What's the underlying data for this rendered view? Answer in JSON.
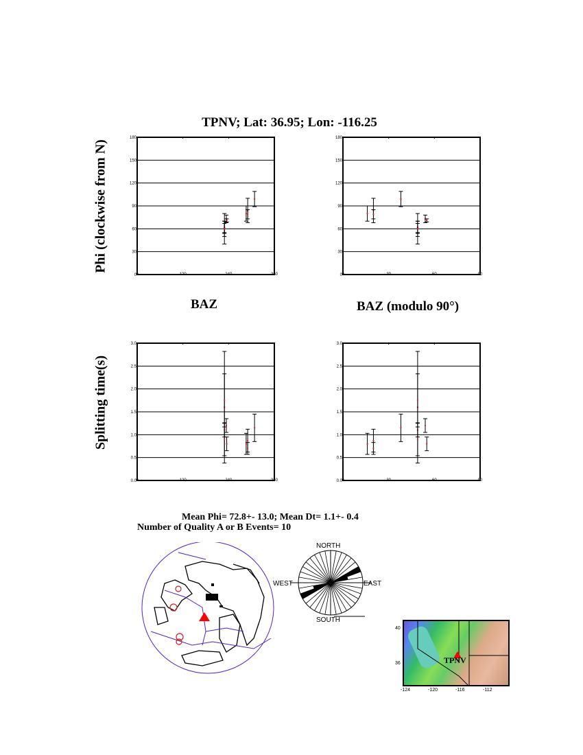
{
  "title": "TPNV; Lat:  36.95;  Lon: -116.25",
  "labels": {
    "phi_axis": "Phi (clockwise from N)",
    "dt_axis": "Splitting time(s)",
    "baz": "BAZ",
    "baz_mod": "BAZ (modulo 90°)"
  },
  "stats": {
    "line1": "Mean Phi= 72.8+- 13.0; Mean Dt=  1.1+-  0.4",
    "line2": "Number of Quality A  or B Events= 10"
  },
  "colors": {
    "marker": "#cc2222",
    "errorbar": "#000000",
    "globe_outline": "#5522cc",
    "station": "#ff0000"
  },
  "chart_data": [
    {
      "type": "scatter",
      "id": "phi_vs_baz",
      "xlim": [
        0,
        360
      ],
      "ylim": [
        0,
        180
      ],
      "xticks": [
        "0",
        "120",
        "240",
        "360"
      ],
      "yticks": [
        "0",
        "30",
        "60",
        "90",
        "120",
        "150",
        "180"
      ],
      "grid": "horizontal",
      "x_field": "baz",
      "y_field": "phi"
    },
    {
      "type": "scatter",
      "id": "phi_vs_bazmod",
      "xlim": [
        0,
        90
      ],
      "ylim": [
        0,
        180
      ],
      "xticks": [
        "0",
        "30",
        "60",
        "90"
      ],
      "yticks": [
        "0",
        "30",
        "60",
        "90",
        "120",
        "150",
        "180"
      ],
      "grid": "horizontal",
      "x_field": "baz_mod90",
      "y_field": "phi"
    },
    {
      "type": "scatter",
      "id": "dt_vs_baz",
      "xlim": [
        0,
        360
      ],
      "ylim": [
        0,
        3
      ],
      "xticks": [
        "0",
        "120",
        "240",
        "360"
      ],
      "yticks": [
        "0.0",
        "0.5",
        "1.0",
        "1.5",
        "2.0",
        "2.5",
        "3.0"
      ],
      "grid": "horizontal",
      "x_field": "baz",
      "y_field": "dt"
    },
    {
      "type": "scatter",
      "id": "dt_vs_bazmod",
      "xlim": [
        0,
        90
      ],
      "ylim": [
        0,
        3
      ],
      "xticks": [
        "0",
        "30",
        "60",
        "90"
      ],
      "yticks": [
        "0.0",
        "0.5",
        "1.0",
        "1.5",
        "2.0",
        "2.5",
        "3.0"
      ],
      "grid": "horizontal",
      "x_field": "baz_mod90",
      "y_field": "dt"
    }
  ],
  "events": [
    {
      "baz": 286,
      "phi": 80,
      "phi_err": 10,
      "dt": 0.8,
      "dt_err": 0.23
    },
    {
      "baz": 290,
      "phi": 84,
      "phi_err": 16,
      "dt": 0.87,
      "dt_err": 0.25
    },
    {
      "baz": 290,
      "phi": 79,
      "phi_err": 6,
      "dt": 0.7,
      "dt_err": 0.13
    },
    {
      "baz": 308,
      "phi": 99,
      "phi_err": 10,
      "dt": 1.15,
      "dt_err": 0.3
    },
    {
      "baz": 229,
      "phi": 60,
      "phi_err": 20,
      "dt": 1.6,
      "dt_err": 1.22
    },
    {
      "baz": 229,
      "phi": 62,
      "phi_err": 8,
      "dt": 1.75,
      "dt_err": 0.58
    },
    {
      "baz": 229,
      "phi": 61,
      "phi_err": 6,
      "dt": 1.1,
      "dt_err": 0.15
    },
    {
      "baz": 229,
      "phi": 60,
      "phi_err": 10,
      "dt": 0.9,
      "dt_err": 0.36
    },
    {
      "baz": 234,
      "phi": 73,
      "phi_err": 5,
      "dt": 1.2,
      "dt_err": 0.15
    },
    {
      "baz": 235,
      "phi": 71,
      "phi_err": 2,
      "dt": 0.8,
      "dt_err": 0.15
    }
  ],
  "rose": {
    "labels": {
      "north": "NORTH",
      "south": "SOUTH",
      "east": "EAST",
      "west": "WEST"
    },
    "bin_deg": 10,
    "bins": [
      {
        "from": 60,
        "to": 70,
        "rel": 1.0
      },
      {
        "from": 70,
        "to": 80,
        "rel": 0.55
      }
    ]
  },
  "regional_map": {
    "station_label": "TPNV",
    "xticks": [
      "-124",
      "-120",
      "-116",
      "-112"
    ],
    "yticks": [
      "40",
      "36"
    ]
  }
}
